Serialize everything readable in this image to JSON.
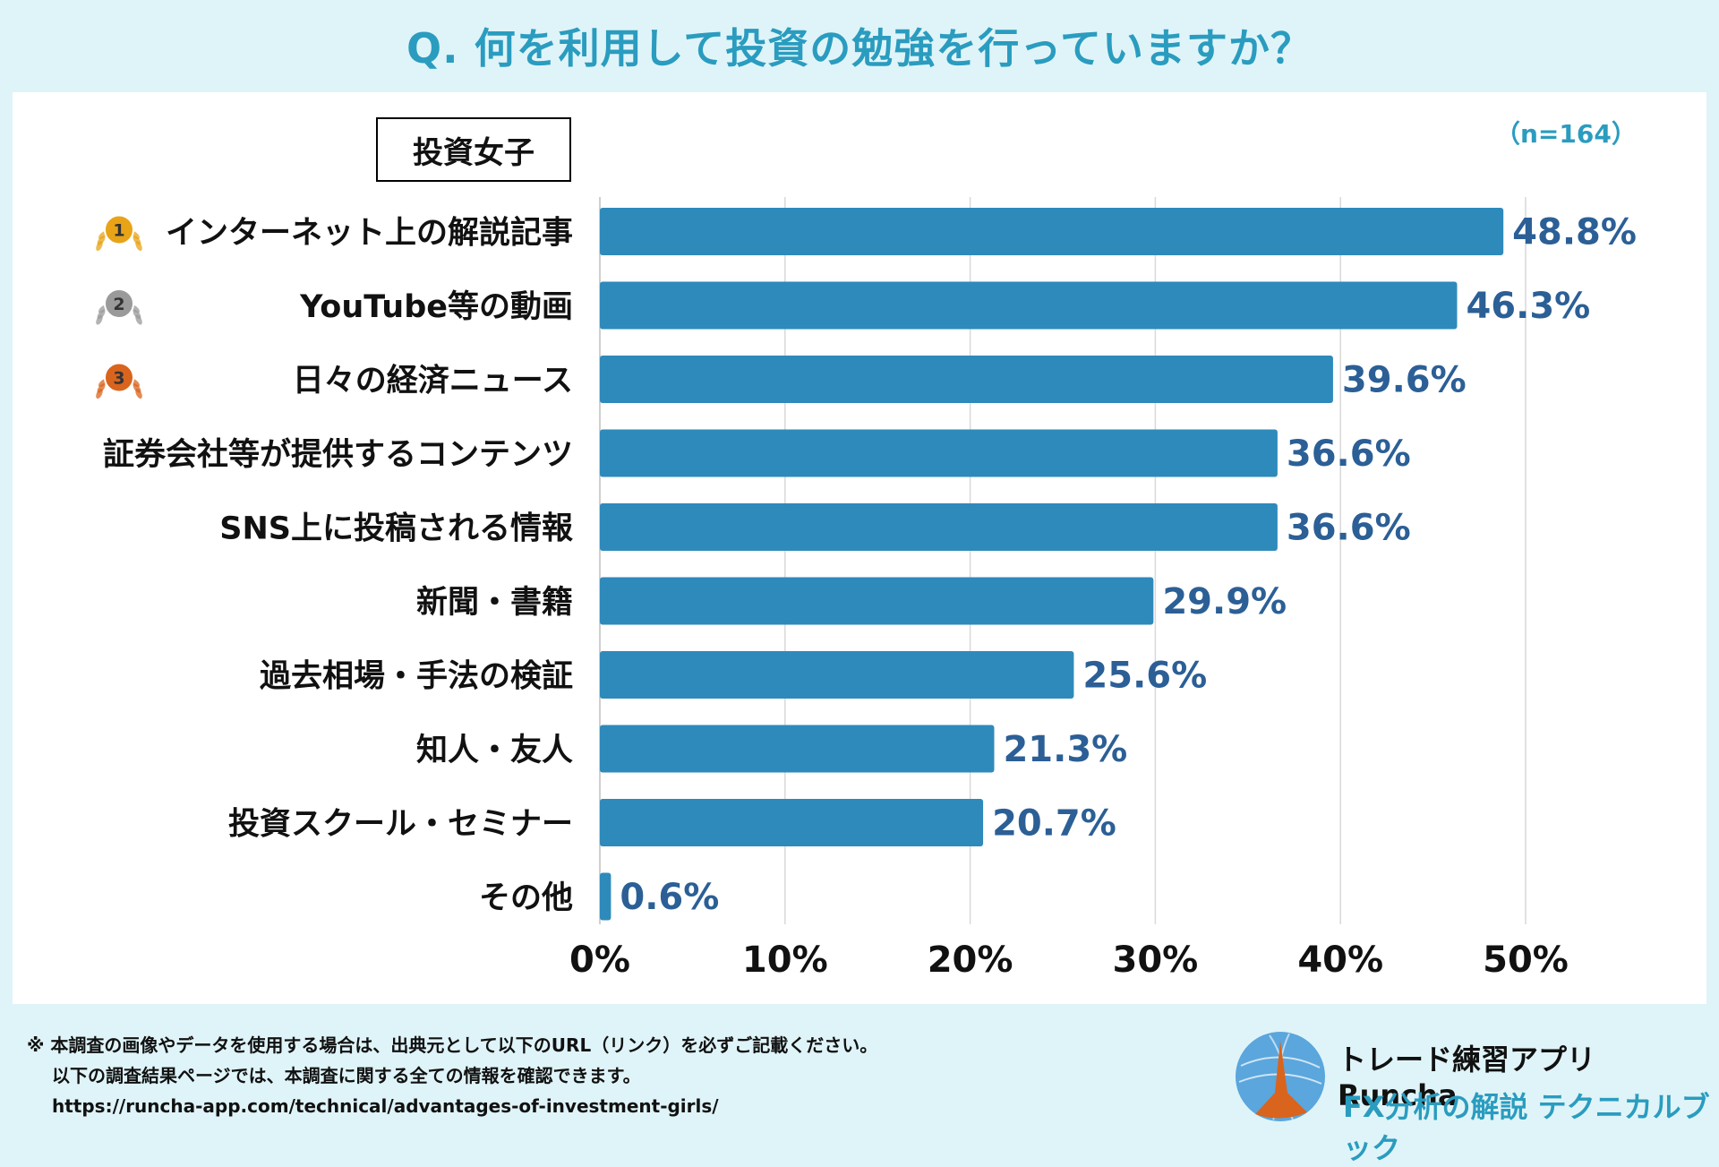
{
  "title": "Q. 何を利用して投資の勉強を行っていますか？",
  "group_label": "投資女子",
  "sample_size": "（n=164）",
  "colors": {
    "bar": "#2e8abb",
    "value_label": "#2b5f96",
    "accent": "#2a9cbf",
    "gold": "#e8a317",
    "silver": "#9a9a9a",
    "bronze": "#d9641e"
  },
  "chart_data": {
    "type": "bar",
    "orientation": "horizontal",
    "categories": [
      "インターネット上の解説記事",
      "YouTube等の動画",
      "日々の経済ニュース",
      "証券会社等が提供するコンテンツ",
      "SNS上に投稿される情報",
      "新聞・書籍",
      "過去相場・手法の検証",
      "知人・友人",
      "投資スクール・セミナー",
      "その他"
    ],
    "values": [
      48.8,
      46.3,
      39.6,
      36.6,
      36.6,
      29.9,
      25.6,
      21.3,
      20.7,
      0.6
    ],
    "value_labels": [
      "48.8%",
      "46.3%",
      "39.6%",
      "36.6%",
      "36.6%",
      "29.9%",
      "25.6%",
      "21.3%",
      "20.7%",
      "0.6%"
    ],
    "rank_badges": [
      {
        "rank": "1",
        "medal": "gold"
      },
      {
        "rank": "2",
        "medal": "silver"
      },
      {
        "rank": "3",
        "medal": "bronze"
      }
    ],
    "x_ticks": [
      0,
      10,
      20,
      30,
      40,
      50
    ],
    "x_tick_labels": [
      "0%",
      "10%",
      "20%",
      "30%",
      "40%",
      "50%"
    ],
    "xlim": [
      0,
      50
    ],
    "grid": true,
    "xlabel": "",
    "ylabel": ""
  },
  "footer": {
    "note_line1": "※ 本調査の画像やデータを使用する場合は、出典元として以下のURL（リンク）を必ずご記載ください。",
    "note_line2": "以下の調査結果ページでは、本調査に関する全ての情報を確認できます。",
    "url": "https://runcha-app.com/technical/advantages-of-investment-girls/"
  },
  "brand": {
    "name": "トレード練習アプリ  Runcha",
    "tagline": "FX分析の解説  テクニカルブック"
  }
}
